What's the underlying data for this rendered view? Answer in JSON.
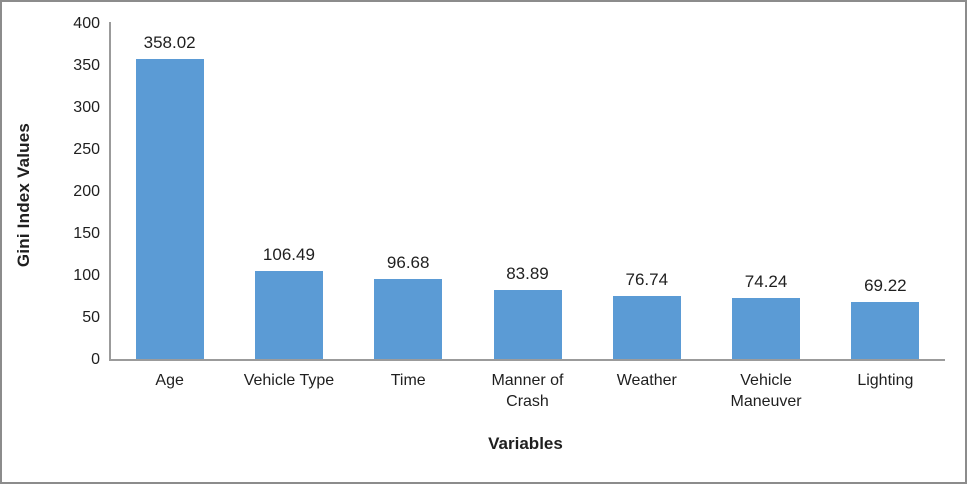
{
  "chart_data": {
    "type": "bar",
    "title": "",
    "categories": [
      "Age",
      "Vehicle Type",
      "Time",
      "Manner of Crash",
      "Weather",
      "Vehicle Maneuver",
      "Lighting"
    ],
    "values": [
      358.02,
      106.49,
      96.68,
      83.89,
      76.74,
      74.24,
      69.22
    ],
    "value_labels": [
      "358.02",
      "106.49",
      "96.68",
      "83.89",
      "76.74",
      "74.24",
      "69.22"
    ],
    "xlabel": "Variables",
    "ylabel": "Gini Index Values",
    "ylim": [
      0,
      400
    ],
    "yticks": [
      0,
      50,
      100,
      150,
      200,
      250,
      300,
      350,
      400
    ],
    "grid": false,
    "legend": "none",
    "data_labels": true,
    "bar_color": "#5B9BD5",
    "axis_line_color": "#9B9B9B",
    "frame_border_color": "#8C8C8C",
    "text_color": "#1F1F1F"
  }
}
